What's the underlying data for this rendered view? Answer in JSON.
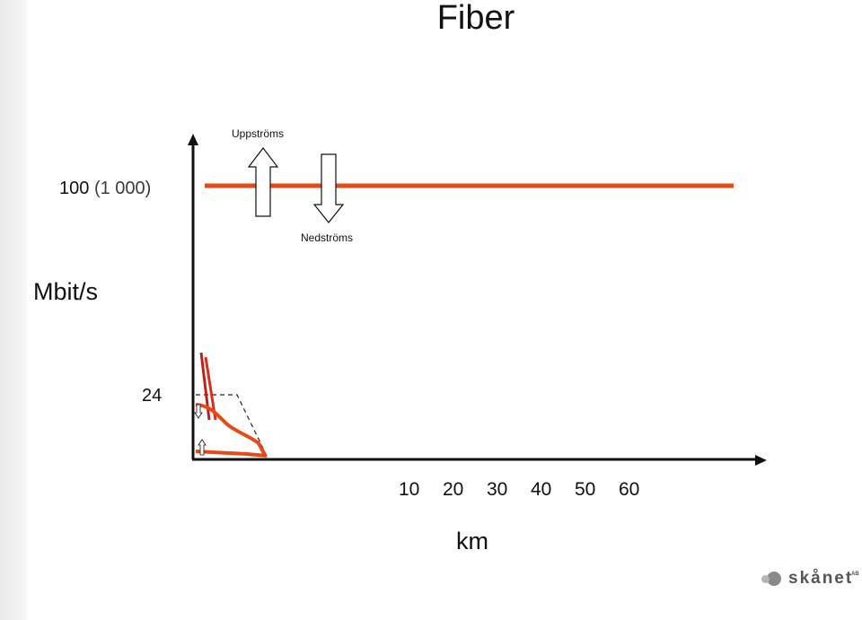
{
  "chart_data": {
    "type": "line",
    "title": "Fiber",
    "ylabel": "Mbit/s",
    "xlabel": "km",
    "y_tick_labels": {
      "top": "100",
      "top_paren": "(1 000)",
      "low": "24"
    },
    "x_ticks": [
      "10",
      "20",
      "30",
      "40",
      "50",
      "60"
    ],
    "annotations": {
      "upstream_label": "Uppströms",
      "downstream_label": "Nedströms"
    },
    "colors": {
      "fiber": "#e64a19",
      "other_lines": "#d62f1e",
      "accent": "#c0201b",
      "axis": "#111111"
    }
  },
  "logo": {
    "text": "skånet",
    "sup": "AB"
  }
}
